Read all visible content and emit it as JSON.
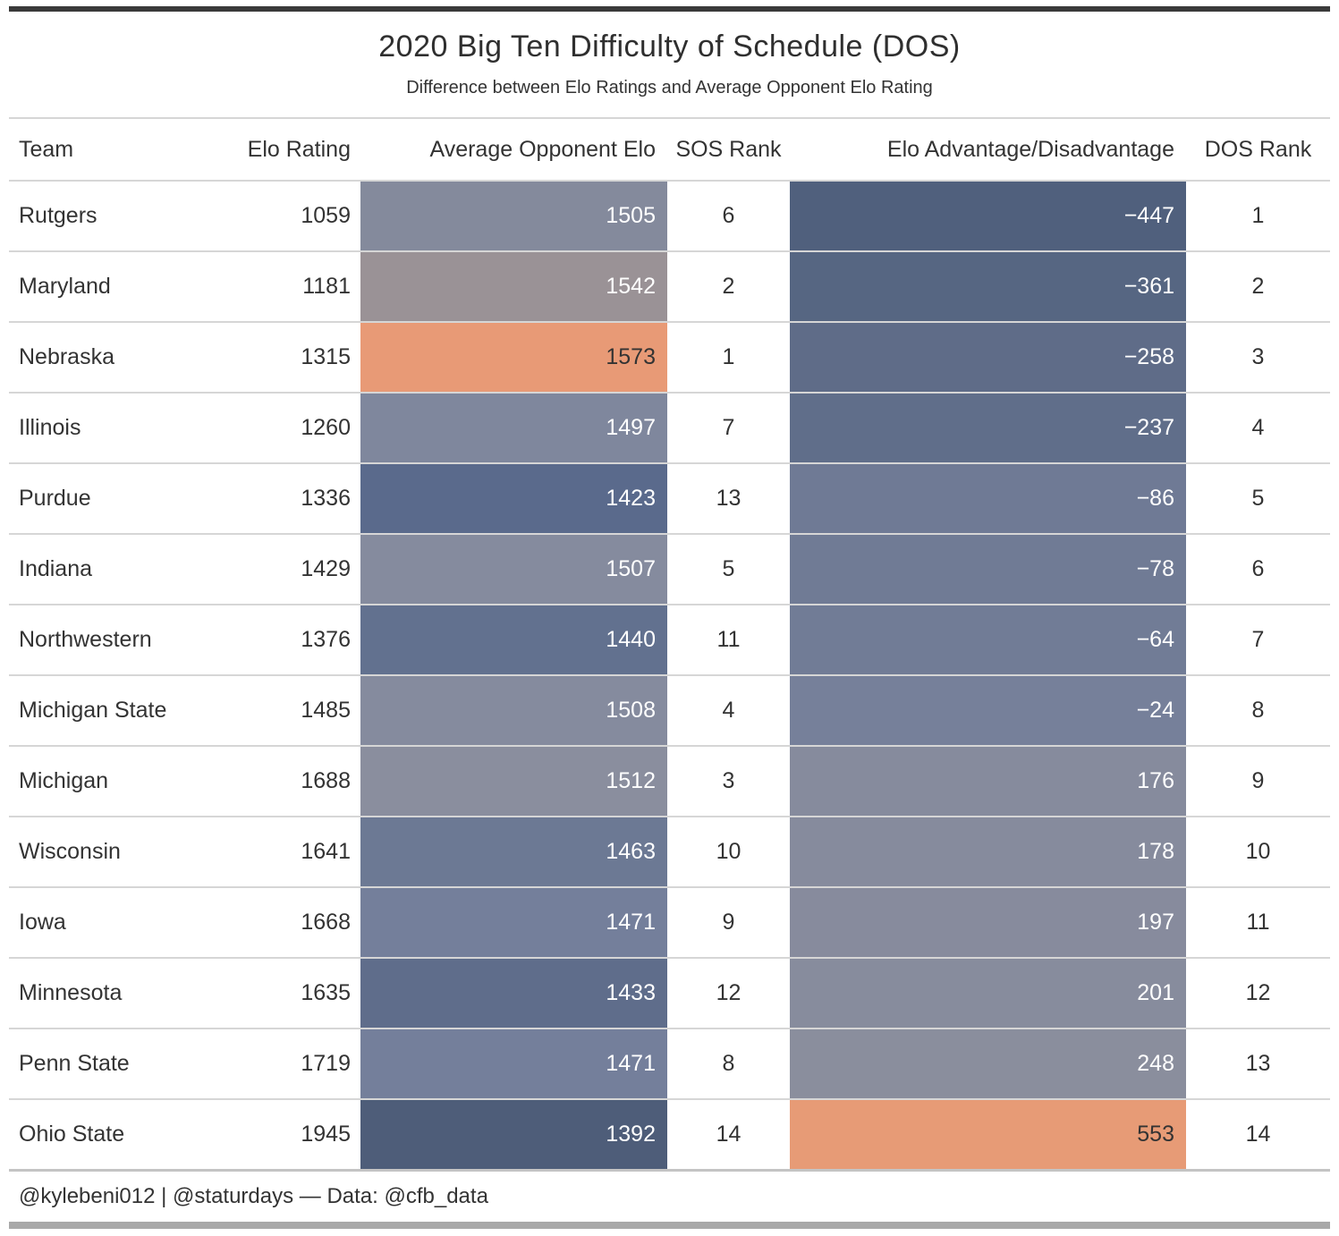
{
  "header": {
    "title": "2020 Big Ten Difficulty of Schedule (DOS)",
    "subtitle": "Difference between Elo Ratings and Average Opponent Elo Rating"
  },
  "columns": {
    "team": "Team",
    "elo": "Elo Rating",
    "avg_opp": "Average Opponent Elo",
    "sos": "SOS Rank",
    "adv": "Elo Advantage/Disadvantage",
    "dos": "DOS Rank"
  },
  "table": {
    "rows": [
      {
        "team": "Rutgers",
        "elo": "1059",
        "avg_opp": "1505",
        "avg_bg": "#848A9C",
        "avg_text": "#FFFFFF",
        "sos": "6",
        "adv": "−447",
        "adv_bg": "#50607D",
        "adv_text": "#FFFFFF",
        "dos": "1"
      },
      {
        "team": "Maryland",
        "elo": "1181",
        "avg_opp": "1542",
        "avg_bg": "#9A9296",
        "avg_text": "#FFFFFF",
        "sos": "2",
        "adv": "−361",
        "adv_bg": "#566682",
        "adv_text": "#FFFFFF",
        "dos": "2"
      },
      {
        "team": "Nebraska",
        "elo": "1315",
        "avg_opp": "1573",
        "avg_bg": "#E89A76",
        "avg_text": "#333333",
        "sos": "1",
        "adv": "−258",
        "adv_bg": "#5F6C88",
        "adv_text": "#FFFFFF",
        "dos": "3"
      },
      {
        "team": "Illinois",
        "elo": "1260",
        "avg_opp": "1497",
        "avg_bg": "#7F879D",
        "avg_text": "#FFFFFF",
        "sos": "7",
        "adv": "−237",
        "adv_bg": "#606E8A",
        "adv_text": "#FFFFFF",
        "dos": "4"
      },
      {
        "team": "Purdue",
        "elo": "1336",
        "avg_opp": "1423",
        "avg_bg": "#5A6A8C",
        "avg_text": "#FFFFFF",
        "sos": "13",
        "adv": "−86",
        "adv_bg": "#6F7A95",
        "adv_text": "#FFFFFF",
        "dos": "5"
      },
      {
        "team": "Indiana",
        "elo": "1429",
        "avg_opp": "1507",
        "avg_bg": "#858B9E",
        "avg_text": "#FFFFFF",
        "sos": "5",
        "adv": "−78",
        "adv_bg": "#707B95",
        "adv_text": "#FFFFFF",
        "dos": "6"
      },
      {
        "team": "Northwestern",
        "elo": "1376",
        "avg_opp": "1440",
        "avg_bg": "#62718F",
        "avg_text": "#FFFFFF",
        "sos": "11",
        "adv": "−64",
        "adv_bg": "#717C96",
        "adv_text": "#FFFFFF",
        "dos": "7"
      },
      {
        "team": "Michigan State",
        "elo": "1485",
        "avg_opp": "1508",
        "avg_bg": "#858B9E",
        "avg_text": "#FFFFFF",
        "sos": "4",
        "adv": "−24",
        "adv_bg": "#76809A",
        "adv_text": "#FFFFFF",
        "dos": "8"
      },
      {
        "team": "Michigan",
        "elo": "1688",
        "avg_opp": "1512",
        "avg_bg": "#8A8E9E",
        "avg_text": "#FFFFFF",
        "sos": "3",
        "adv": "176",
        "adv_bg": "#868B9D",
        "adv_text": "#FFFFFF",
        "dos": "9"
      },
      {
        "team": "Wisconsin",
        "elo": "1641",
        "avg_opp": "1463",
        "avg_bg": "#6C7994",
        "avg_text": "#FFFFFF",
        "sos": "10",
        "adv": "178",
        "adv_bg": "#868B9D",
        "adv_text": "#FFFFFF",
        "dos": "10"
      },
      {
        "team": "Iowa",
        "elo": "1668",
        "avg_opp": "1471",
        "avg_bg": "#747F9B",
        "avg_text": "#FFFFFF",
        "sos": "9",
        "adv": "197",
        "adv_bg": "#878B9D",
        "adv_text": "#FFFFFF",
        "dos": "11"
      },
      {
        "team": "Minnesota",
        "elo": "1635",
        "avg_opp": "1433",
        "avg_bg": "#5F6D8B",
        "avg_text": "#FFFFFF",
        "sos": "12",
        "adv": "201",
        "adv_bg": "#878C9D",
        "adv_text": "#FFFFFF",
        "dos": "12"
      },
      {
        "team": "Penn State",
        "elo": "1719",
        "avg_opp": "1471",
        "avg_bg": "#747F9B",
        "avg_text": "#FFFFFF",
        "sos": "8",
        "adv": "248",
        "adv_bg": "#8A8E9D",
        "adv_text": "#FFFFFF",
        "dos": "13"
      },
      {
        "team": "Ohio State",
        "elo": "1945",
        "avg_opp": "1392",
        "avg_bg": "#4E5D79",
        "avg_text": "#FFFFFF",
        "sos": "14",
        "adv": "553",
        "adv_bg": "#E79B76",
        "adv_text": "#333333",
        "dos": "14"
      }
    ]
  },
  "footer": {
    "credit": "@kylebeni012 | @staturdays — Data: @cfb_data"
  },
  "colors": {
    "rule_light": "#D6D6D6",
    "rule_top": "#3A3A3A",
    "rule_bottom": "#A9A9A9",
    "scale_low": "#4E5D79",
    "scale_mid": "#8A8E9E",
    "scale_high": "#E89A76"
  },
  "chart_data": {
    "type": "table",
    "title": "2020 Big Ten Difficulty of Schedule (DOS)",
    "subtitle": "Difference between Elo Ratings and Average Opponent Elo Rating",
    "columns": [
      "Team",
      "Elo Rating",
      "Average Opponent Elo",
      "SOS Rank",
      "Elo Advantage/Disadvantage",
      "DOS Rank"
    ],
    "rows": [
      [
        "Rutgers",
        1059,
        1505,
        6,
        -447,
        1
      ],
      [
        "Maryland",
        1181,
        1542,
        2,
        -361,
        2
      ],
      [
        "Nebraska",
        1315,
        1573,
        1,
        -258,
        3
      ],
      [
        "Illinois",
        1260,
        1497,
        7,
        -237,
        4
      ],
      [
        "Purdue",
        1336,
        1423,
        13,
        -86,
        5
      ],
      [
        "Indiana",
        1429,
        1507,
        5,
        -78,
        6
      ],
      [
        "Northwestern",
        1376,
        1440,
        11,
        -64,
        7
      ],
      [
        "Michigan State",
        1485,
        1508,
        4,
        -24,
        8
      ],
      [
        "Michigan",
        1688,
        1512,
        3,
        176,
        9
      ],
      [
        "Wisconsin",
        1641,
        1463,
        10,
        178,
        10
      ],
      [
        "Iowa",
        1668,
        1471,
        9,
        197,
        11
      ],
      [
        "Minnesota",
        1635,
        1433,
        12,
        201,
        12
      ],
      [
        "Penn State",
        1719,
        1471,
        8,
        248,
        13
      ],
      [
        "Ohio State",
        1945,
        1392,
        14,
        553,
        14
      ]
    ],
    "color_scale": {
      "type": "diverging",
      "low": "#4E5D79",
      "mid": "#8A8E9E",
      "high": "#E89A76",
      "applied_to_columns": [
        "Average Opponent Elo",
        "Elo Advantage/Disadvantage"
      ]
    },
    "footer": "@kylebeni012 | @staturdays — Data: @cfb_data"
  }
}
